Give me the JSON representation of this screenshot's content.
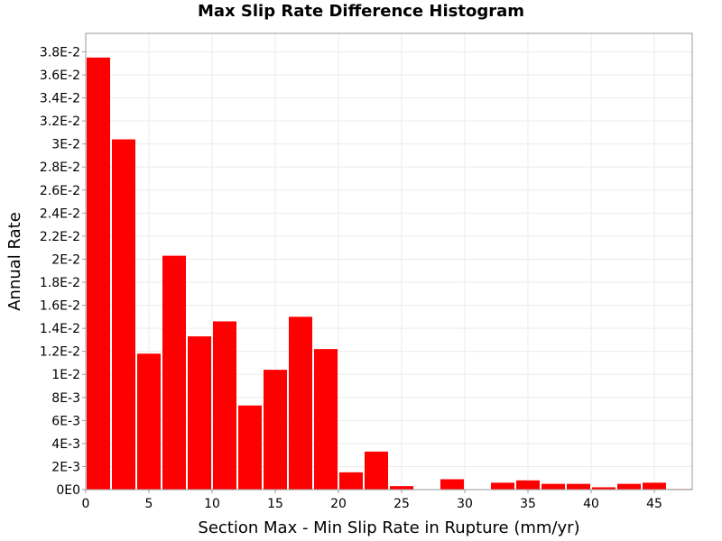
{
  "chart_data": {
    "type": "bar",
    "title": "Max Slip Rate Difference Histogram",
    "xlabel": "Section Max - Min Slip Rate in Rupture (mm/yr)",
    "ylabel": "Annual Rate",
    "xlim": [
      0,
      48
    ],
    "ylim": [
      0,
      0.0396
    ],
    "bin_width": 2,
    "x_ticks": [
      {
        "value": 0,
        "label": "0"
      },
      {
        "value": 5,
        "label": "5"
      },
      {
        "value": 10,
        "label": "10"
      },
      {
        "value": 15,
        "label": "15"
      },
      {
        "value": 20,
        "label": "20"
      },
      {
        "value": 25,
        "label": "25"
      },
      {
        "value": 30,
        "label": "30"
      },
      {
        "value": 35,
        "label": "35"
      },
      {
        "value": 40,
        "label": "40"
      },
      {
        "value": 45,
        "label": "45"
      }
    ],
    "y_ticks": [
      {
        "value": 0,
        "label": "0E0"
      },
      {
        "value": 0.002,
        "label": "2E-3"
      },
      {
        "value": 0.004,
        "label": "4E-3"
      },
      {
        "value": 0.006,
        "label": "6E-3"
      },
      {
        "value": 0.008,
        "label": "8E-3"
      },
      {
        "value": 0.01,
        "label": "1E-2"
      },
      {
        "value": 0.012,
        "label": "1.2E-2"
      },
      {
        "value": 0.014,
        "label": "1.4E-2"
      },
      {
        "value": 0.016,
        "label": "1.6E-2"
      },
      {
        "value": 0.018,
        "label": "1.8E-2"
      },
      {
        "value": 0.02,
        "label": "2E-2"
      },
      {
        "value": 0.022,
        "label": "2.2E-2"
      },
      {
        "value": 0.024,
        "label": "2.4E-2"
      },
      {
        "value": 0.026,
        "label": "2.6E-2"
      },
      {
        "value": 0.028,
        "label": "2.8E-2"
      },
      {
        "value": 0.03,
        "label": "3E-2"
      },
      {
        "value": 0.032,
        "label": "3.2E-2"
      },
      {
        "value": 0.034,
        "label": "3.4E-2"
      },
      {
        "value": 0.036,
        "label": "3.6E-2"
      },
      {
        "value": 0.038,
        "label": "3.8E-2"
      }
    ],
    "bins": [
      {
        "x": 1,
        "value": 0.0375
      },
      {
        "x": 3,
        "value": 0.0304
      },
      {
        "x": 5,
        "value": 0.0118
      },
      {
        "x": 7,
        "value": 0.0203
      },
      {
        "x": 9,
        "value": 0.0133
      },
      {
        "x": 11,
        "value": 0.0146
      },
      {
        "x": 13,
        "value": 0.0073
      },
      {
        "x": 15,
        "value": 0.0104
      },
      {
        "x": 17,
        "value": 0.015
      },
      {
        "x": 19,
        "value": 0.0122
      },
      {
        "x": 21,
        "value": 0.0015
      },
      {
        "x": 23,
        "value": 0.0033
      },
      {
        "x": 25,
        "value": 0.0003
      },
      {
        "x": 27,
        "value": 0.0
      },
      {
        "x": 29,
        "value": 0.0009
      },
      {
        "x": 31,
        "value": 0.0
      },
      {
        "x": 33,
        "value": 0.0006
      },
      {
        "x": 35,
        "value": 0.0008
      },
      {
        "x": 37,
        "value": 0.0005
      },
      {
        "x": 39,
        "value": 0.0005
      },
      {
        "x": 41,
        "value": 0.0002
      },
      {
        "x": 43,
        "value": 0.0005
      },
      {
        "x": 45,
        "value": 0.0006
      },
      {
        "x": 47,
        "value": 5e-05
      }
    ],
    "bar_color": "#ff0000",
    "grid": true,
    "grid_color": "#ebebeb",
    "legend": "none"
  }
}
